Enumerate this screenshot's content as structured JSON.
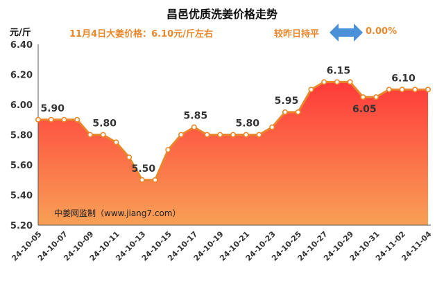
{
  "header": {
    "title": "昌邑优质洗姜价格走势",
    "unit": "元/斤",
    "price_text": "11月4日大姜价格：6.10元/斤左右",
    "compare_text": "较昨日持平",
    "change_text": "0.00%"
  },
  "source_text": "中姜网监制（www.jiang7.com）",
  "colors": {
    "line": "#e8872b",
    "area_top": "#ff3a3a",
    "area_bottom": "#f8a055",
    "accent": "#e8872b",
    "arrow": "#4a90d9"
  },
  "chart_data": {
    "type": "area",
    "title": "昌邑优质洗姜价格走势",
    "ylabel": "元/斤",
    "ylim": [
      5.2,
      6.4
    ],
    "yticks": [
      5.2,
      5.4,
      5.6,
      5.8,
      6.0,
      6.2,
      6.4
    ],
    "ytick_labels": [
      "5.20",
      "5.40",
      "5.60",
      "5.80",
      "6.00",
      "6.20",
      "6.40"
    ],
    "grid": false,
    "x": [
      "24-10-05",
      "24-10-06",
      "24-10-07",
      "24-10-08",
      "24-10-09",
      "24-10-10",
      "24-10-11",
      "24-10-12",
      "24-10-13",
      "24-10-14",
      "24-10-15",
      "24-10-16",
      "24-10-17",
      "24-10-18",
      "24-10-19",
      "24-10-20",
      "24-10-21",
      "24-10-22",
      "24-10-23",
      "24-10-24",
      "24-10-25",
      "24-10-26",
      "24-10-27",
      "24-10-28",
      "24-10-29",
      "24-10-30",
      "24-10-31",
      "24-11-01",
      "24-11-02",
      "24-11-03",
      "24-11-04"
    ],
    "xtick_labels": [
      "24-10-05",
      "24-10-07",
      "24-10-09",
      "24-10-11",
      "24-10-13",
      "24-10-15",
      "24-10-17",
      "24-10-19",
      "24-10-21",
      "24-10-23",
      "24-10-25",
      "24-10-27",
      "24-10-29",
      "24-10-31",
      "24-11-02",
      "24-11-04"
    ],
    "values": [
      5.9,
      5.9,
      5.9,
      5.9,
      5.8,
      5.8,
      5.75,
      5.65,
      5.5,
      5.5,
      5.7,
      5.8,
      5.85,
      5.8,
      5.8,
      5.8,
      5.8,
      5.8,
      5.85,
      5.95,
      5.95,
      6.1,
      6.15,
      6.15,
      6.15,
      6.05,
      6.05,
      6.1,
      6.1,
      6.1,
      6.1
    ],
    "data_labels": [
      {
        "index": 1,
        "text": "5.90"
      },
      {
        "index": 5,
        "text": "5.80"
      },
      {
        "index": 8,
        "text": "5.50"
      },
      {
        "index": 12,
        "text": "5.85"
      },
      {
        "index": 16,
        "text": "5.80"
      },
      {
        "index": 19,
        "text": "5.95"
      },
      {
        "index": 23,
        "text": "6.15"
      },
      {
        "index": 25,
        "text": "6.05"
      },
      {
        "index": 28,
        "text": "6.10"
      }
    ]
  }
}
